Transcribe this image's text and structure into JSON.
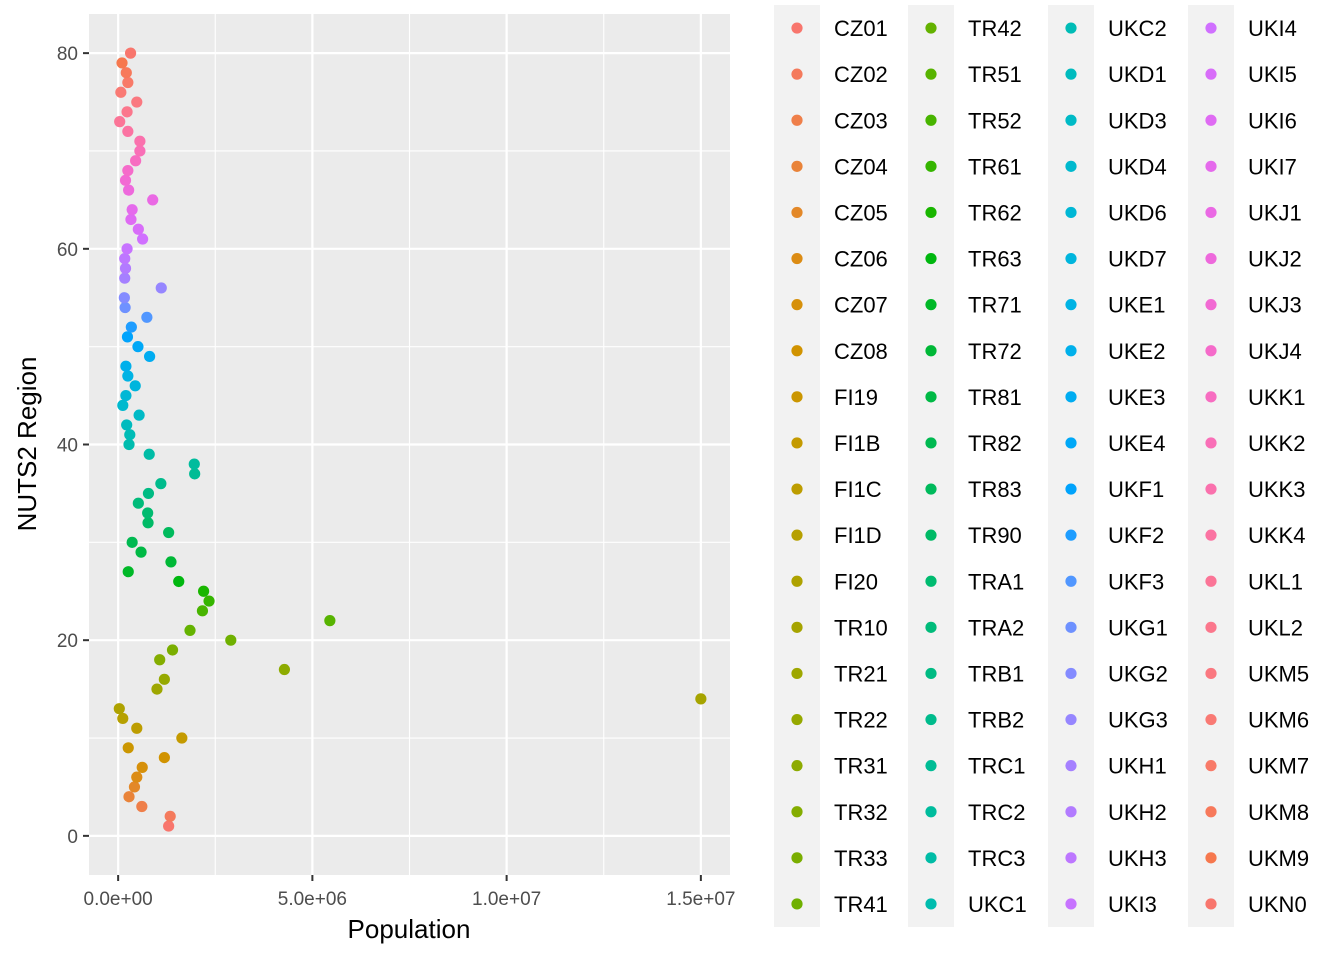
{
  "chart_data": {
    "type": "scatter",
    "title": "",
    "xlabel": "Population",
    "ylabel": "NUTS2 Region",
    "xlim": [
      -750000,
      15750000
    ],
    "ylim": [
      -4,
      84
    ],
    "x_ticks": [
      0,
      5000000,
      10000000,
      15000000
    ],
    "x_tick_labels": [
      "0.0e+00",
      "5.0e+06",
      "1.0e+07",
      "1.5e+07"
    ],
    "y_ticks": [
      0,
      20,
      40,
      60,
      80
    ],
    "y_tick_labels": [
      "0",
      "20",
      "40",
      "60",
      "80"
    ],
    "grid": true,
    "legend_position": "right",
    "legend_columns": 4,
    "series": [
      {
        "name": "CZ01",
        "x": 1300000,
        "y": 1,
        "color": "#F8766D"
      },
      {
        "name": "CZ02",
        "x": 1340000,
        "y": 2,
        "color": "#F47A5C"
      },
      {
        "name": "CZ03",
        "x": 610000,
        "y": 3,
        "color": "#EF7F4A"
      },
      {
        "name": "CZ04",
        "x": 280000,
        "y": 4,
        "color": "#E98339"
      },
      {
        "name": "CZ05",
        "x": 420000,
        "y": 5,
        "color": "#E38828"
      },
      {
        "name": "CZ06",
        "x": 480000,
        "y": 6,
        "color": "#DC8C14"
      },
      {
        "name": "CZ07",
        "x": 620000,
        "y": 7,
        "color": "#D6900A"
      },
      {
        "name": "CZ08",
        "x": 1190000,
        "y": 8,
        "color": "#D19300"
      },
      {
        "name": "FI19",
        "x": 260000,
        "y": 9,
        "color": "#CB9600"
      },
      {
        "name": "FI1B",
        "x": 1640000,
        "y": 10,
        "color": "#C49A00"
      },
      {
        "name": "FI1C",
        "x": 480000,
        "y": 11,
        "color": "#BD9D00"
      },
      {
        "name": "FI1D",
        "x": 120000,
        "y": 12,
        "color": "#B6A000"
      },
      {
        "name": "FI20",
        "x": 30000,
        "y": 13,
        "color": "#AEA200"
      },
      {
        "name": "TR10",
        "x": 15000000,
        "y": 14,
        "color": "#A6A400"
      },
      {
        "name": "TR21",
        "x": 1000000,
        "y": 15,
        "color": "#9EA700"
      },
      {
        "name": "TR22",
        "x": 1190000,
        "y": 16,
        "color": "#96A900"
      },
      {
        "name": "TR31",
        "x": 4280000,
        "y": 17,
        "color": "#8DAB00"
      },
      {
        "name": "TR32",
        "x": 1070000,
        "y": 18,
        "color": "#84AD00"
      },
      {
        "name": "TR33",
        "x": 1400000,
        "y": 19,
        "color": "#7AAE00"
      },
      {
        "name": "TR41",
        "x": 2900000,
        "y": 20,
        "color": "#6FB000"
      },
      {
        "name": "TR42",
        "x": 1850000,
        "y": 21,
        "color": "#64B200"
      },
      {
        "name": "TR51",
        "x": 5450000,
        "y": 22,
        "color": "#57B300"
      },
      {
        "name": "TR52",
        "x": 2170000,
        "y": 23,
        "color": "#48B400"
      },
      {
        "name": "TR61",
        "x": 2340000,
        "y": 24,
        "color": "#35B500"
      },
      {
        "name": "TR62",
        "x": 2200000,
        "y": 25,
        "color": "#19B600"
      },
      {
        "name": "TR63",
        "x": 1560000,
        "y": 26,
        "color": "#00B70F"
      },
      {
        "name": "TR71",
        "x": 260000,
        "y": 27,
        "color": "#00B827"
      },
      {
        "name": "TR72",
        "x": 1360000,
        "y": 28,
        "color": "#00B837"
      },
      {
        "name": "TR81",
        "x": 590000,
        "y": 29,
        "color": "#00B945"
      },
      {
        "name": "TR82",
        "x": 360000,
        "y": 30,
        "color": "#00B951"
      },
      {
        "name": "TR83",
        "x": 1300000,
        "y": 31,
        "color": "#00BA5C"
      },
      {
        "name": "TR90",
        "x": 770000,
        "y": 32,
        "color": "#00BA66"
      },
      {
        "name": "TRA1",
        "x": 760000,
        "y": 33,
        "color": "#00BB70"
      },
      {
        "name": "TRA2",
        "x": 520000,
        "y": 34,
        "color": "#00BB7A"
      },
      {
        "name": "TRB1",
        "x": 780000,
        "y": 35,
        "color": "#00BB83"
      },
      {
        "name": "TRB2",
        "x": 1100000,
        "y": 36,
        "color": "#00BB8C"
      },
      {
        "name": "TRC1",
        "x": 1970000,
        "y": 37,
        "color": "#00BC95"
      },
      {
        "name": "TRC2",
        "x": 1960000,
        "y": 38,
        "color": "#00BC9D"
      },
      {
        "name": "TRC3",
        "x": 800000,
        "y": 39,
        "color": "#00BCA6"
      },
      {
        "name": "UKC1",
        "x": 280000,
        "y": 40,
        "color": "#00BCAE"
      },
      {
        "name": "UKC2",
        "x": 300000,
        "y": 41,
        "color": "#00BCB6"
      },
      {
        "name": "UKD1",
        "x": 220000,
        "y": 42,
        "color": "#00BBBE"
      },
      {
        "name": "UKD3",
        "x": 540000,
        "y": 43,
        "color": "#00BAC6"
      },
      {
        "name": "UKD4",
        "x": 120000,
        "y": 44,
        "color": "#00B9CE"
      },
      {
        "name": "UKD6",
        "x": 200000,
        "y": 45,
        "color": "#00B7D5"
      },
      {
        "name": "UKD7",
        "x": 440000,
        "y": 46,
        "color": "#00B5DD"
      },
      {
        "name": "UKE1",
        "x": 250000,
        "y": 47,
        "color": "#00B3E4"
      },
      {
        "name": "UKE2",
        "x": 200000,
        "y": 48,
        "color": "#00B0EB"
      },
      {
        "name": "UKE3",
        "x": 810000,
        "y": 49,
        "color": "#00ACF1"
      },
      {
        "name": "UKE4",
        "x": 510000,
        "y": 50,
        "color": "#00A8F7"
      },
      {
        "name": "UKF1",
        "x": 240000,
        "y": 51,
        "color": "#00A3FC"
      },
      {
        "name": "UKF2",
        "x": 340000,
        "y": 52,
        "color": "#1E9DFF"
      },
      {
        "name": "UKF3",
        "x": 740000,
        "y": 53,
        "color": "#5197FF"
      },
      {
        "name": "UKG1",
        "x": 180000,
        "y": 54,
        "color": "#6E91FF"
      },
      {
        "name": "UKG2",
        "x": 160000,
        "y": 55,
        "color": "#848BFF"
      },
      {
        "name": "UKG3",
        "x": 1110000,
        "y": 56,
        "color": "#9686FF"
      },
      {
        "name": "UKH1",
        "x": 170000,
        "y": 57,
        "color": "#A580FF"
      },
      {
        "name": "UKH2",
        "x": 190000,
        "y": 58,
        "color": "#B27BFF"
      },
      {
        "name": "UKH3",
        "x": 170000,
        "y": 59,
        "color": "#BD77FF"
      },
      {
        "name": "UKI3",
        "x": 230000,
        "y": 60,
        "color": "#C773FF"
      },
      {
        "name": "UKI4",
        "x": 630000,
        "y": 61,
        "color": "#D070FF"
      },
      {
        "name": "UKI5",
        "x": 520000,
        "y": 62,
        "color": "#D86DF9"
      },
      {
        "name": "UKI6",
        "x": 330000,
        "y": 63,
        "color": "#DF6BF3"
      },
      {
        "name": "UKI7",
        "x": 360000,
        "y": 64,
        "color": "#E56AEC"
      },
      {
        "name": "UKJ1",
        "x": 890000,
        "y": 65,
        "color": "#EA69E4"
      },
      {
        "name": "UKJ2",
        "x": 270000,
        "y": 66,
        "color": "#EE69DC"
      },
      {
        "name": "UKJ3",
        "x": 190000,
        "y": 67,
        "color": "#F26AD3"
      },
      {
        "name": "UKJ4",
        "x": 250000,
        "y": 68,
        "color": "#F56BCA"
      },
      {
        "name": "UKK1",
        "x": 450000,
        "y": 69,
        "color": "#F76DC1"
      },
      {
        "name": "UKK2",
        "x": 560000,
        "y": 70,
        "color": "#F96FB7"
      },
      {
        "name": "UKK3",
        "x": 560000,
        "y": 71,
        "color": "#FA71AD"
      },
      {
        "name": "UKK4",
        "x": 250000,
        "y": 72,
        "color": "#FB73A2"
      },
      {
        "name": "UKL1",
        "x": 40000,
        "y": 73,
        "color": "#FB7597"
      },
      {
        "name": "UKL2",
        "x": 230000,
        "y": 74,
        "color": "#FB778C"
      },
      {
        "name": "UKM5",
        "x": 480000,
        "y": 75,
        "color": "#FA7880"
      },
      {
        "name": "UKM6",
        "x": 70000,
        "y": 76,
        "color": "#F97A74"
      },
      {
        "name": "UKM7",
        "x": 250000,
        "y": 77,
        "color": "#F87A68"
      },
      {
        "name": "UKM8",
        "x": 210000,
        "y": 78,
        "color": "#F7795B"
      },
      {
        "name": "UKM9",
        "x": 100000,
        "y": 79,
        "color": "#F6784E"
      },
      {
        "name": "UKN0",
        "x": 320000,
        "y": 80,
        "color": "#F8766D"
      }
    ]
  }
}
